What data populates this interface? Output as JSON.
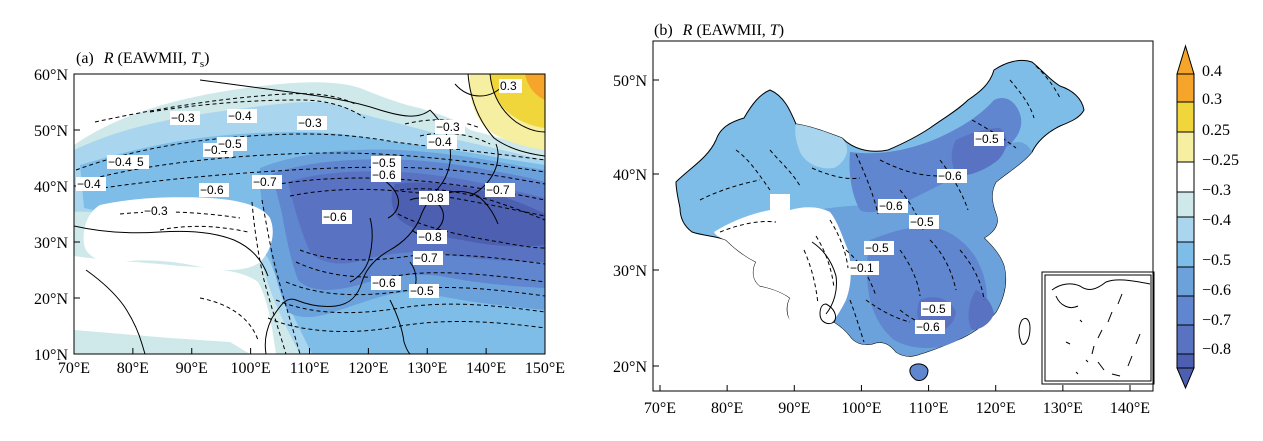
{
  "panel_a": {
    "tag": "(a)",
    "title_var": "R",
    "title_args_open": " (EAWMII, ",
    "title_T": "T",
    "title_sub": "s",
    "title_close": ")",
    "lat_ticks": [
      "60°N",
      "50°N",
      "40°N",
      "30°N",
      "20°N",
      "10°N"
    ],
    "lon_ticks": [
      "70°E",
      "80°E",
      "90°E",
      "100°E",
      "110°E",
      "120°E",
      "130°E",
      "140°E",
      "150°E"
    ],
    "contour_labels": [
      "−0.3",
      "−0.3",
      "−0.4",
      "−0.3",
      "−0.4",
      "−0.4",
      "−0.5",
      "−0.4",
      "−0.6",
      "−0.3",
      "−0.4",
      "−0.5",
      "−0.7",
      "−0.5",
      "−0.6",
      "−0.8",
      "−0.7",
      "−0.6",
      "−0.8",
      "−0.7",
      "−0.6",
      "−0.5",
      "0.3"
    ]
  },
  "panel_b": {
    "tag": "(b)",
    "title_var": "R",
    "title_args_open": " (EAWMII, ",
    "title_T": "T",
    "title_close": ")",
    "lat_ticks": [
      "50°N",
      "40°N",
      "30°N",
      "20°N"
    ],
    "lon_ticks": [
      "70°E",
      "80°E",
      "90°E",
      "100°E",
      "110°E",
      "120°E",
      "130°E",
      "140°E"
    ],
    "contour_labels": [
      "−0.5",
      "−0.6",
      "−0.6",
      "−0.5",
      "−0.5",
      "−0.1",
      "−0.5",
      "−0.6"
    ]
  },
  "colorbar": {
    "labels": [
      "0.4",
      "0.3",
      "0.25",
      "−0.25",
      "−0.3",
      "−0.4",
      "−0.5",
      "−0.6",
      "−0.7",
      "−0.8"
    ],
    "colors": {
      "pos_04": "#f4a52a",
      "pos_03": "#f0d63a",
      "pos_025": "#f6eea0",
      "white": "#ffffff",
      "neg_025": "#cfe9ea",
      "neg_03": "#a9d6ee",
      "neg_04": "#7fbde9",
      "neg_05": "#6ca2dc",
      "neg_06": "#5f86cf",
      "neg_07": "#5a72c2",
      "neg_08": "#4c5fb0"
    }
  }
}
